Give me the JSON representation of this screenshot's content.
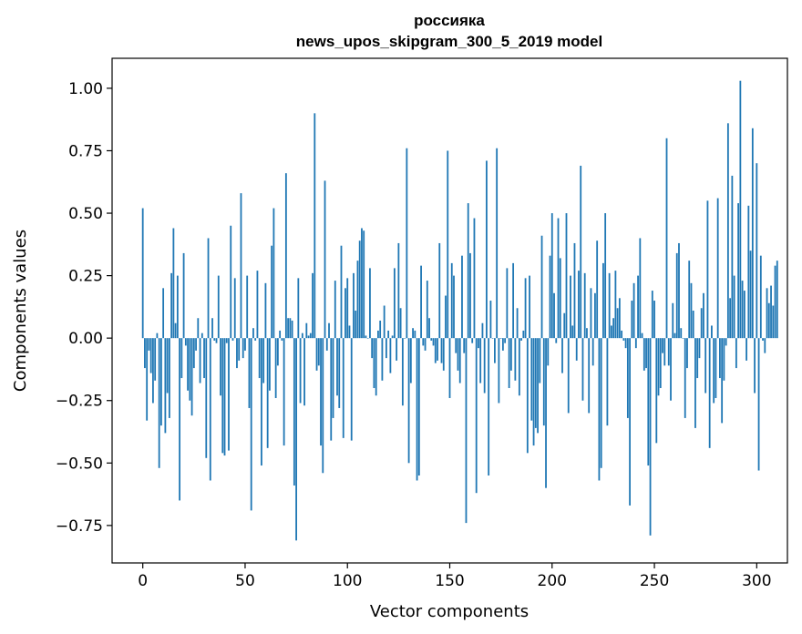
{
  "chart_data": {
    "type": "bar",
    "title": "россияка",
    "subtitle": "news_upos_skipgram_300_5_2019 model",
    "xlabel": "Vector components",
    "ylabel": "Components values",
    "xlim": [
      -15,
      315
    ],
    "ylim": [
      -0.9,
      1.12
    ],
    "xticks": [
      0,
      50,
      100,
      150,
      200,
      250,
      300
    ],
    "xtick_labels": [
      "0",
      "50",
      "100",
      "150",
      "200",
      "250",
      "300"
    ],
    "yticks": [
      -0.75,
      -0.5,
      -0.25,
      0.0,
      0.25,
      0.5,
      0.75,
      1.0
    ],
    "ytick_labels": [
      "−0.75",
      "−0.50",
      "−0.25",
      "0.00",
      "0.25",
      "0.50",
      "0.75",
      "1.00"
    ],
    "bar_color": "#1f77b4",
    "grid": false,
    "values": [
      0.52,
      -0.12,
      -0.33,
      -0.05,
      -0.14,
      -0.26,
      -0.17,
      0.02,
      -0.52,
      -0.35,
      0.2,
      -0.38,
      -0.22,
      -0.32,
      0.26,
      0.44,
      0.06,
      0.25,
      -0.65,
      -0.16,
      0.34,
      -0.03,
      -0.21,
      -0.25,
      -0.31,
      -0.12,
      -0.05,
      0.08,
      -0.18,
      0.02,
      -0.16,
      -0.48,
      0.4,
      -0.57,
      0.08,
      -0.01,
      -0.02,
      0.25,
      -0.23,
      -0.46,
      -0.47,
      -0.02,
      -0.45,
      0.45,
      -0.01,
      0.24,
      -0.12,
      -0.09,
      0.58,
      -0.08,
      -0.05,
      0.25,
      -0.28,
      -0.69,
      0.04,
      -0.01,
      0.27,
      -0.16,
      -0.51,
      -0.18,
      0.22,
      -0.44,
      -0.21,
      0.37,
      0.52,
      -0.24,
      -0.11,
      0.03,
      -0.01,
      -0.43,
      0.66,
      0.08,
      0.08,
      0.07,
      -0.59,
      -0.81,
      0.24,
      -0.26,
      0.02,
      -0.27,
      0.06,
      0.01,
      0.02,
      0.26,
      0.9,
      -0.13,
      -0.11,
      -0.43,
      -0.54,
      0.63,
      -0.05,
      0.06,
      -0.41,
      -0.32,
      0.23,
      -0.23,
      -0.28,
      0.37,
      -0.4,
      0.2,
      0.24,
      0.05,
      -0.41,
      0.26,
      0.11,
      0.31,
      0.39,
      0.44,
      0.43,
      0.01,
      0.0,
      0.28,
      -0.08,
      -0.2,
      -0.23,
      0.03,
      0.07,
      -0.17,
      0.13,
      -0.08,
      0.03,
      -0.14,
      0.01,
      0.28,
      -0.09,
      0.38,
      0.12,
      -0.27,
      0.0,
      0.76,
      -0.5,
      -0.18,
      0.04,
      0.03,
      -0.57,
      -0.55,
      0.29,
      -0.03,
      -0.05,
      0.23,
      0.08,
      -0.01,
      -0.03,
      -0.1,
      -0.09,
      0.38,
      -0.1,
      -0.13,
      0.17,
      0.75,
      -0.24,
      0.3,
      0.25,
      -0.06,
      -0.13,
      -0.18,
      0.33,
      -0.06,
      -0.74,
      0.54,
      0.34,
      -0.02,
      0.48,
      -0.62,
      -0.04,
      -0.18,
      0.06,
      -0.22,
      0.71,
      -0.55,
      0.15,
      0.0,
      -0.1,
      0.76,
      -0.26,
      0.0,
      -0.05,
      -0.02,
      0.28,
      -0.2,
      -0.13,
      0.3,
      -0.17,
      0.12,
      -0.23,
      -0.01,
      0.03,
      0.24,
      -0.46,
      0.25,
      -0.33,
      -0.43,
      -0.36,
      -0.38,
      -0.18,
      0.41,
      -0.35,
      -0.6,
      -0.11,
      0.33,
      0.5,
      0.18,
      -0.02,
      0.48,
      0.32,
      -0.14,
      0.1,
      0.5,
      -0.3,
      0.25,
      0.05,
      0.38,
      -0.09,
      0.27,
      0.69,
      -0.25,
      0.26,
      0.04,
      -0.3,
      0.2,
      -0.11,
      0.18,
      0.39,
      -0.57,
      -0.52,
      0.3,
      0.5,
      -0.35,
      0.26,
      0.05,
      0.08,
      0.27,
      0.12,
      0.16,
      0.03,
      -0.01,
      -0.04,
      -0.32,
      -0.67,
      0.15,
      0.22,
      -0.04,
      0.25,
      0.4,
      0.02,
      -0.13,
      -0.12,
      -0.51,
      -0.79,
      0.19,
      0.15,
      -0.42,
      -0.23,
      -0.2,
      -0.06,
      -0.11,
      0.8,
      -0.11,
      -0.25,
      0.14,
      0.02,
      0.34,
      0.38,
      0.04,
      0.0,
      -0.32,
      -0.12,
      0.31,
      0.22,
      0.11,
      -0.36,
      -0.16,
      -0.08,
      0.12,
      0.18,
      -0.22,
      0.55,
      -0.44,
      0.05,
      -0.26,
      -0.24,
      0.56,
      -0.16,
      -0.34,
      -0.17,
      -0.03,
      0.86,
      0.16,
      0.65,
      0.25,
      -0.12,
      0.54,
      1.03,
      0.23,
      0.19,
      -0.09,
      0.53,
      0.35,
      0.84,
      -0.22,
      0.7,
      -0.53,
      0.33,
      -0.01,
      -0.06,
      0.2,
      0.14,
      0.21,
      0.13,
      0.29,
      0.31
    ]
  }
}
